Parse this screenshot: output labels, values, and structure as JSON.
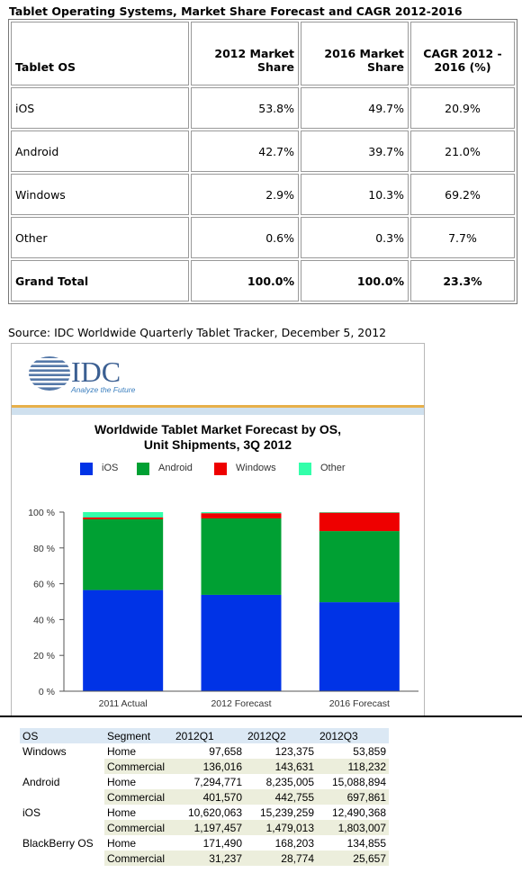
{
  "table1": {
    "title": "Tablet Operating Systems, Market Share Forecast and CAGR 2012-2016",
    "headers": [
      "Tablet OS",
      "2012 Market Share",
      "2016 Market Share",
      "CAGR 2012 - 2016 (%)"
    ],
    "rows": [
      [
        "iOS",
        "53.8%",
        "49.7%",
        "20.9%"
      ],
      [
        "Android",
        "42.7%",
        "39.7%",
        "21.0%"
      ],
      [
        "Windows",
        "2.9%",
        "10.3%",
        "69.2%"
      ],
      [
        "Other",
        "0.6%",
        "0.3%",
        "7.7%"
      ],
      [
        "Grand Total",
        "100.0%",
        "100.0%",
        "23.3%"
      ]
    ]
  },
  "source": "Source: IDC Worldwide Quarterly Tablet Tracker, December 5, 2012",
  "logo": {
    "text": "IDC",
    "tagline": "Analyze the Future"
  },
  "chart_data": {
    "type": "bar",
    "stacked": true,
    "title": "Worldwide Tablet Market Forecast by OS, Unit Shipments, 3Q 2012",
    "title_line1": "Worldwide Tablet Market Forecast by OS,",
    "title_line2": "Unit Shipments, 3Q 2012",
    "categories": [
      "2011 Actual",
      "2012 Forecast",
      "2016 Forecast"
    ],
    "series": [
      {
        "name": "iOS",
        "color": "#0033e6",
        "values": [
          56.5,
          53.8,
          49.7
        ]
      },
      {
        "name": "Android",
        "color": "#00a033",
        "values": [
          39.5,
          42.7,
          39.7
        ]
      },
      {
        "name": "Windows",
        "color": "#ee0000",
        "values": [
          1.0,
          2.9,
          10.3
        ]
      },
      {
        "name": "Other",
        "color": "#33ffaa",
        "values": [
          3.0,
          0.6,
          0.3
        ]
      }
    ],
    "yticks": [
      "0 %",
      "20 %",
      "40 %",
      "60 %",
      "80 %",
      "100 %"
    ],
    "ylim": [
      0,
      100
    ],
    "legend_position": "top",
    "grid": false
  },
  "table2": {
    "headers": [
      "OS",
      "Segment",
      "2012Q1",
      "2012Q2",
      "2012Q3"
    ],
    "rows": [
      [
        "Windows",
        "Home",
        "97,658",
        "123,375",
        "53,859"
      ],
      [
        "",
        "Commercial",
        "136,016",
        "143,631",
        "118,232"
      ],
      [
        "Android",
        "Home",
        "7,294,771",
        "8,235,005",
        "15,088,894"
      ],
      [
        "",
        "Commercial",
        "401,570",
        "442,755",
        "697,861"
      ],
      [
        "iOS",
        "Home",
        "10,620,063",
        "15,239,259",
        "12,490,368"
      ],
      [
        "",
        "Commercial",
        "1,197,457",
        "1,479,013",
        "1,803,007"
      ],
      [
        "BlackBerry OS",
        "Home",
        "171,490",
        "168,203",
        "134,855"
      ],
      [
        "",
        "Commercial",
        "31,237",
        "28,774",
        "25,657"
      ]
    ]
  }
}
